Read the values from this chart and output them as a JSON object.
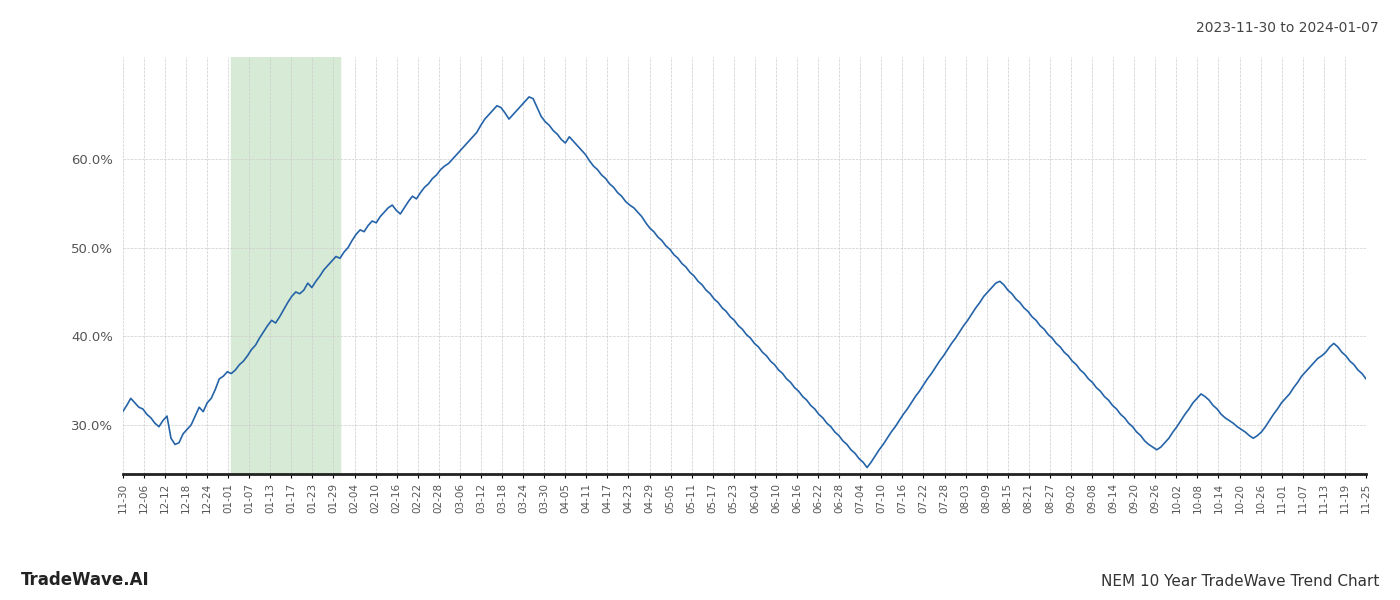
{
  "title_top_right": "2023-11-30 to 2024-01-07",
  "title_bottom_left": "TradeWave.AI",
  "title_bottom_right": "NEM 10 Year TradeWave Trend Chart",
  "line_color": "#2563a8",
  "line_width": 1.2,
  "highlight_color": "#d6ead5",
  "background_color": "#ffffff",
  "grid_color": "#cccccc",
  "ylim": [
    0.245,
    0.715
  ],
  "yticks": [
    0.3,
    0.4,
    0.5,
    0.6
  ],
  "x_labels": [
    "11-30",
    "12-06",
    "12-12",
    "12-18",
    "12-24",
    "01-01",
    "01-07",
    "01-13",
    "01-17",
    "01-23",
    "01-29",
    "02-04",
    "02-10",
    "02-16",
    "02-22",
    "02-28",
    "03-06",
    "03-12",
    "03-18",
    "03-24",
    "03-30",
    "04-05",
    "04-11",
    "04-17",
    "04-23",
    "04-29",
    "05-05",
    "05-11",
    "05-17",
    "05-23",
    "06-04",
    "06-10",
    "06-16",
    "06-22",
    "06-28",
    "07-04",
    "07-10",
    "07-16",
    "07-22",
    "07-28",
    "08-03",
    "08-09",
    "08-15",
    "08-21",
    "08-27",
    "09-02",
    "09-08",
    "09-14",
    "09-20",
    "09-26",
    "10-02",
    "10-08",
    "10-14",
    "10-20",
    "10-26",
    "11-01",
    "11-07",
    "11-13",
    "11-19",
    "11-25"
  ],
  "values": [
    0.315,
    0.322,
    0.33,
    0.325,
    0.32,
    0.318,
    0.312,
    0.308,
    0.302,
    0.298,
    0.305,
    0.31,
    0.285,
    0.278,
    0.28,
    0.29,
    0.295,
    0.3,
    0.31,
    0.32,
    0.315,
    0.325,
    0.33,
    0.34,
    0.352,
    0.355,
    0.36,
    0.358,
    0.362,
    0.368,
    0.372,
    0.378,
    0.385,
    0.39,
    0.398,
    0.405,
    0.412,
    0.418,
    0.415,
    0.422,
    0.43,
    0.438,
    0.445,
    0.45,
    0.448,
    0.452,
    0.46,
    0.455,
    0.462,
    0.468,
    0.475,
    0.48,
    0.485,
    0.49,
    0.488,
    0.495,
    0.5,
    0.508,
    0.515,
    0.52,
    0.518,
    0.525,
    0.53,
    0.528,
    0.535,
    0.54,
    0.545,
    0.548,
    0.542,
    0.538,
    0.545,
    0.552,
    0.558,
    0.555,
    0.562,
    0.568,
    0.572,
    0.578,
    0.582,
    0.588,
    0.592,
    0.595,
    0.6,
    0.605,
    0.61,
    0.615,
    0.62,
    0.625,
    0.63,
    0.638,
    0.645,
    0.65,
    0.655,
    0.66,
    0.658,
    0.652,
    0.645,
    0.65,
    0.655,
    0.66,
    0.665,
    0.67,
    0.668,
    0.658,
    0.648,
    0.642,
    0.638,
    0.632,
    0.628,
    0.622,
    0.618,
    0.625,
    0.62,
    0.615,
    0.61,
    0.605,
    0.598,
    0.592,
    0.588,
    0.582,
    0.578,
    0.572,
    0.568,
    0.562,
    0.558,
    0.552,
    0.548,
    0.545,
    0.54,
    0.535,
    0.528,
    0.522,
    0.518,
    0.512,
    0.508,
    0.502,
    0.498,
    0.492,
    0.488,
    0.482,
    0.478,
    0.472,
    0.468,
    0.462,
    0.458,
    0.452,
    0.448,
    0.442,
    0.438,
    0.432,
    0.428,
    0.422,
    0.418,
    0.412,
    0.408,
    0.402,
    0.398,
    0.392,
    0.388,
    0.382,
    0.378,
    0.372,
    0.368,
    0.362,
    0.358,
    0.352,
    0.348,
    0.342,
    0.338,
    0.332,
    0.328,
    0.322,
    0.318,
    0.312,
    0.308,
    0.302,
    0.298,
    0.292,
    0.288,
    0.282,
    0.278,
    0.272,
    0.268,
    0.262,
    0.258,
    0.252,
    0.258,
    0.265,
    0.272,
    0.278,
    0.285,
    0.292,
    0.298,
    0.305,
    0.312,
    0.318,
    0.325,
    0.332,
    0.338,
    0.345,
    0.352,
    0.358,
    0.365,
    0.372,
    0.378,
    0.385,
    0.392,
    0.398,
    0.405,
    0.412,
    0.418,
    0.425,
    0.432,
    0.438,
    0.445,
    0.45,
    0.455,
    0.46,
    0.462,
    0.458,
    0.452,
    0.448,
    0.442,
    0.438,
    0.432,
    0.428,
    0.422,
    0.418,
    0.412,
    0.408,
    0.402,
    0.398,
    0.392,
    0.388,
    0.382,
    0.378,
    0.372,
    0.368,
    0.362,
    0.358,
    0.352,
    0.348,
    0.342,
    0.338,
    0.332,
    0.328,
    0.322,
    0.318,
    0.312,
    0.308,
    0.302,
    0.298,
    0.292,
    0.288,
    0.282,
    0.278,
    0.275,
    0.272,
    0.275,
    0.28,
    0.285,
    0.292,
    0.298,
    0.305,
    0.312,
    0.318,
    0.325,
    0.33,
    0.335,
    0.332,
    0.328,
    0.322,
    0.318,
    0.312,
    0.308,
    0.305,
    0.302,
    0.298,
    0.295,
    0.292,
    0.288,
    0.285,
    0.288,
    0.292,
    0.298,
    0.305,
    0.312,
    0.318,
    0.325,
    0.33,
    0.335,
    0.342,
    0.348,
    0.355,
    0.36,
    0.365,
    0.37,
    0.375,
    0.378,
    0.382,
    0.388,
    0.392,
    0.388,
    0.382,
    0.378,
    0.372,
    0.368,
    0.362,
    0.358,
    0.352
  ],
  "highlight_xstart": 0.09,
  "highlight_xend": 0.175
}
